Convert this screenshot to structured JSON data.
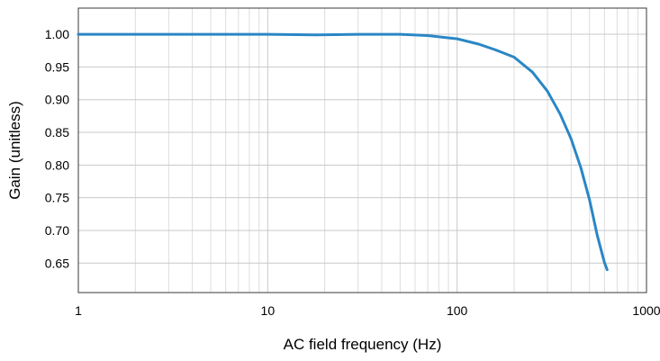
{
  "chart_data": {
    "type": "line",
    "xlabel": "AC field frequency (Hz)",
    "ylabel": "Gain (unitless)",
    "x_scale": "log",
    "xlim": [
      1,
      1000
    ],
    "ylim": [
      0.605,
      1.04
    ],
    "x_ticks": [
      {
        "value": 1,
        "label": "1"
      },
      {
        "value": 10,
        "label": "10"
      },
      {
        "value": 100,
        "label": "100"
      },
      {
        "value": 1000,
        "label": "1000"
      }
    ],
    "y_ticks": [
      {
        "value": 1.0,
        "label": "1.00"
      },
      {
        "value": 0.95,
        "label": "0.95"
      },
      {
        "value": 0.9,
        "label": "0.90"
      },
      {
        "value": 0.85,
        "label": "0.85"
      },
      {
        "value": 0.8,
        "label": "0.80"
      },
      {
        "value": 0.75,
        "label": "0.75"
      },
      {
        "value": 0.7,
        "label": "0.70"
      },
      {
        "value": 0.65,
        "label": "0.65"
      }
    ],
    "grid": true,
    "line_color": "#2a86c5",
    "grid_color": "#c8c8c8",
    "series": [
      {
        "x": [
          1,
          2,
          5,
          10,
          18,
          30,
          50,
          70,
          100,
          130,
          160,
          200,
          250,
          300,
          350,
          400,
          450,
          500,
          550,
          600,
          620
        ],
        "y": [
          1.0,
          1.0,
          1.0,
          1.0,
          0.999,
          1.0,
          1.0,
          0.998,
          0.993,
          0.985,
          0.976,
          0.965,
          0.942,
          0.913,
          0.878,
          0.84,
          0.796,
          0.747,
          0.692,
          0.651,
          0.64
        ]
      }
    ]
  }
}
